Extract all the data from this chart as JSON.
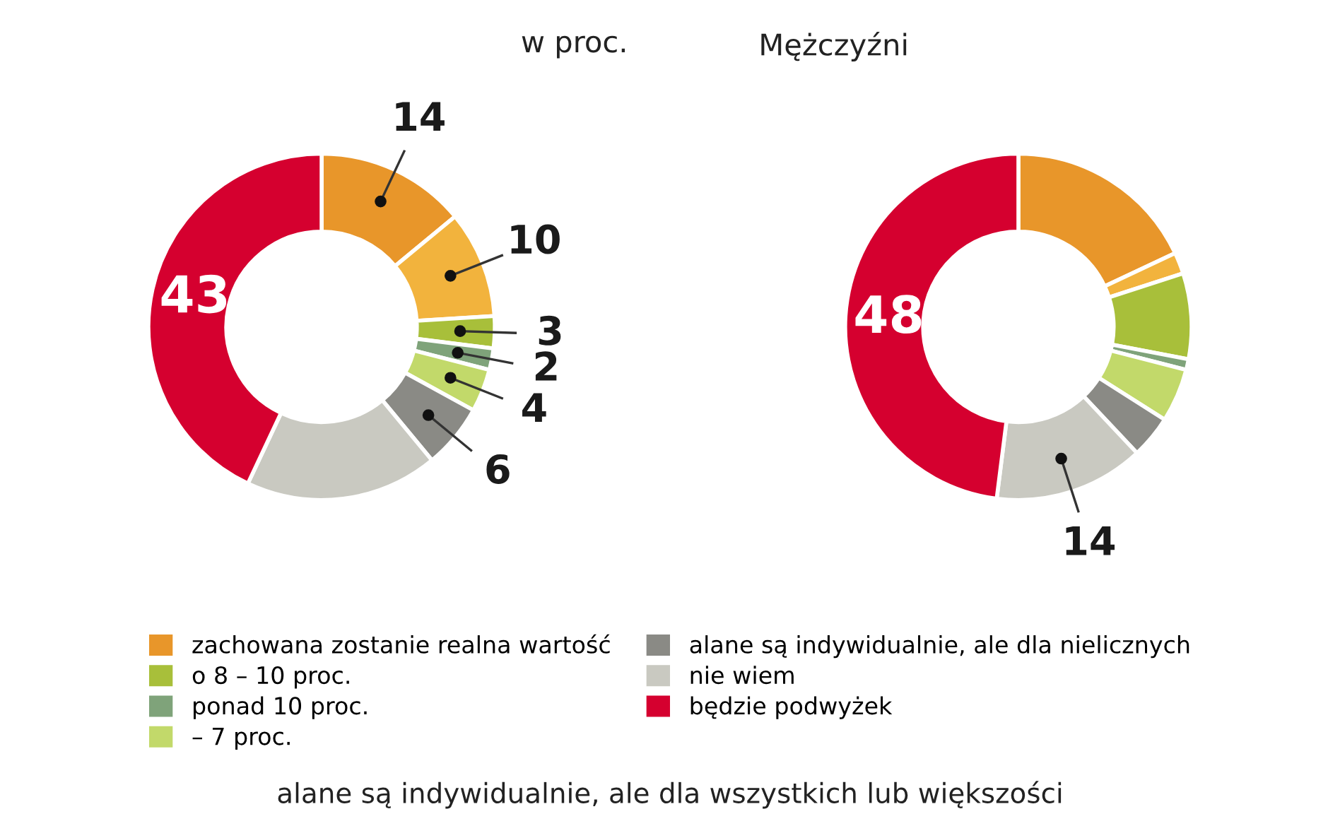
{
  "chart_data": [
    {
      "type": "donut",
      "annotations": [
        "w proc.",
        "alane są indywidualnie, ale dla wszystkich lub większości"
      ],
      "categories": [
        "zachowana zostanie realna wartość",
        null,
        "o 8 – 10 proc.",
        "ponad 10 proc.",
        "– 7 proc.",
        "alane są indywidualnie, ale dla nielicznych",
        "nie wiem",
        "będzie podwyżek"
      ],
      "values": [
        14,
        10,
        3,
        2,
        4,
        6,
        18,
        43
      ],
      "colors": [
        "#e8962a",
        "#f2b33d",
        "#a8bf3a",
        "#7fa37a",
        "#c2d96a",
        "#8a8a85",
        "#c9c9c1",
        "#d5002f"
      ],
      "value_labels": [
        "14",
        "10",
        "3",
        "2",
        "4",
        "6",
        null,
        "43"
      ],
      "legend": "bottom"
    },
    {
      "type": "donut",
      "title": "Mężczyźni",
      "categories": [
        null,
        null,
        null,
        null,
        null,
        null,
        null,
        null
      ],
      "values": [
        18,
        2,
        8,
        1,
        5,
        4,
        14,
        48
      ],
      "colors": [
        "#e8962a",
        "#f2b33d",
        "#a8bf3a",
        "#7fa37a",
        "#c2d96a",
        "#8a8a85",
        "#c9c9c1",
        "#d5002f"
      ],
      "value_labels": [
        null,
        null,
        null,
        null,
        null,
        null,
        "14",
        "48"
      ]
    }
  ]
}
